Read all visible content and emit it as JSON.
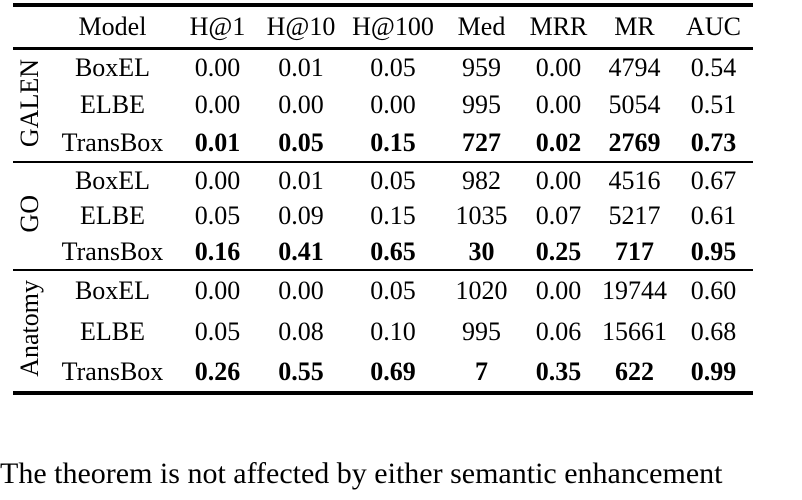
{
  "table": {
    "headers": [
      "Model",
      "H@1",
      "H@10",
      "H@100",
      "Med",
      "MRR",
      "MR",
      "AUC"
    ],
    "groups": [
      {
        "name": "GALEN",
        "rows": [
          {
            "model": "BoxEL",
            "bold": false,
            "values": [
              "0.00",
              "0.01",
              "0.05",
              "959",
              "0.00",
              "4794",
              "0.54"
            ]
          },
          {
            "model": "ELBE",
            "bold": false,
            "values": [
              "0.00",
              "0.00",
              "0.00",
              "995",
              "0.00",
              "5054",
              "0.51"
            ]
          },
          {
            "model": "TransBox",
            "bold": true,
            "values": [
              "0.01",
              "0.05",
              "0.15",
              "727",
              "0.02",
              "2769",
              "0.73"
            ]
          }
        ]
      },
      {
        "name": "GO",
        "rows": [
          {
            "model": "BoxEL",
            "bold": false,
            "values": [
              "0.00",
              "0.01",
              "0.05",
              "982",
              "0.00",
              "4516",
              "0.67"
            ]
          },
          {
            "model": "ELBE",
            "bold": false,
            "values": [
              "0.05",
              "0.09",
              "0.15",
              "1035",
              "0.07",
              "5217",
              "0.61"
            ]
          },
          {
            "model": "TransBox",
            "bold": true,
            "values": [
              "0.16",
              "0.41",
              "0.65",
              "30",
              "0.25",
              "717",
              "0.95"
            ]
          }
        ]
      },
      {
        "name": "Anatomy",
        "rows": [
          {
            "model": "BoxEL",
            "bold": false,
            "values": [
              "0.00",
              "0.00",
              "0.05",
              "1020",
              "0.00",
              "19744",
              "0.60"
            ]
          },
          {
            "model": "ELBE",
            "bold": false,
            "values": [
              "0.05",
              "0.08",
              "0.10",
              "995",
              "0.06",
              "15661",
              "0.68"
            ]
          },
          {
            "model": "TransBox",
            "bold": true,
            "values": [
              "0.26",
              "0.55",
              "0.69",
              "7",
              "0.35",
              "622",
              "0.99"
            ]
          }
        ]
      }
    ]
  },
  "caption": "The theorem is not affected by either semantic enhancement"
}
